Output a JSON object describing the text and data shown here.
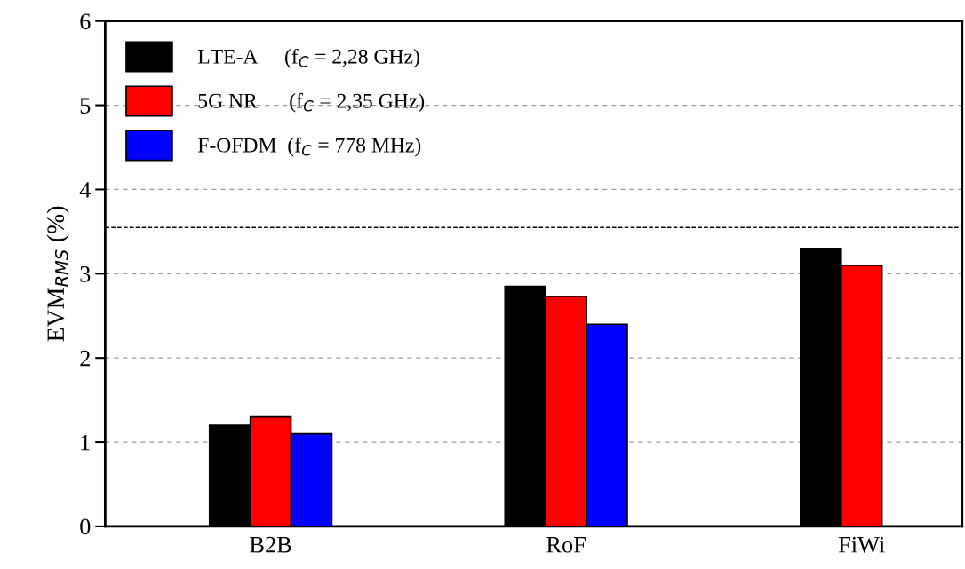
{
  "chart_data": {
    "type": "bar",
    "ylabel": "EVM$_{RMS}$ (%)",
    "categories": [
      "B2B",
      "RoF",
      "FiWi"
    ],
    "series": [
      {
        "name": "LTE-A     (f$_{C}$ = 2,28 GHz)",
        "color": "#000000",
        "values": [
          1.2,
          2.85,
          3.3
        ]
      },
      {
        "name": "5G NR      (f$_{C}$ = 2,35 GHz)",
        "color": "#ff0000",
        "values": [
          1.3,
          2.73,
          3.1
        ]
      },
      {
        "name": "F-OFDM  (f$_{C}$ = 778 MHz)",
        "color": "#0000ff",
        "values": [
          1.1,
          2.4,
          null
        ]
      }
    ],
    "ylim": [
      0,
      6
    ],
    "yticks": [
      0,
      1,
      2,
      3,
      4,
      5,
      6
    ],
    "grid": "y",
    "legend": "top left",
    "ref_lines": [
      {
        "axis": "y",
        "value": 3.55,
        "color": "#000000",
        "line_style": "dashed"
      }
    ]
  }
}
